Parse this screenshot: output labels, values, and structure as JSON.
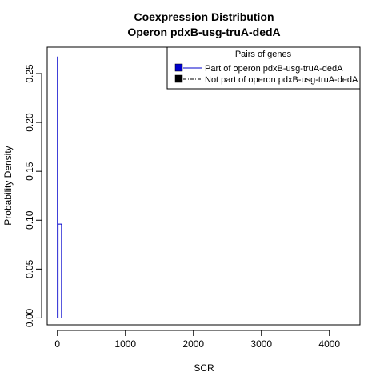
{
  "chart_data": {
    "type": "line",
    "title": "Coexpression Distribution",
    "subtitle": "Operon pdxB-usg-truA-dedA",
    "xlabel": "SCR",
    "ylabel": "Probability Density",
    "xlim": [
      -150,
      4450
    ],
    "ylim": [
      -0.007,
      0.277
    ],
    "x_ticks": [
      0,
      1000,
      2000,
      3000,
      4000
    ],
    "x_tick_labels": [
      "0",
      "1000",
      "2000",
      "3000",
      "4000"
    ],
    "y_ticks": [
      0.0,
      0.05,
      0.1,
      0.15,
      0.2,
      0.25
    ],
    "y_tick_labels": [
      "0.00",
      "0.05",
      "0.10",
      "0.15",
      "0.20",
      "0.25"
    ],
    "legend": {
      "title": "Pairs of genes",
      "position": "top-right",
      "entries": [
        {
          "label": "Part of operon pdxB-usg-truA-dedA",
          "color": "#0000cc",
          "line": "solid"
        },
        {
          "label": "Not part of operon pdxB-usg-truA-dedA",
          "color": "#000000",
          "line": "dashdot"
        }
      ]
    },
    "series": [
      {
        "name": "Part of operon pdxB-usg-truA-dedA",
        "color": "#0000cc",
        "x": [
          0,
          0,
          5,
          5,
          10,
          10,
          60,
          60,
          65,
          65
        ],
        "y": [
          0,
          0.267,
          0.267,
          0.0,
          0.0,
          0.096,
          0.096,
          0.0,
          0.0,
          0.095
        ]
      },
      {
        "name": "Not part of operon pdxB-usg-truA-dedA",
        "color": "#000000",
        "x": [
          -150,
          4450
        ],
        "y": [
          0,
          0
        ]
      }
    ]
  }
}
